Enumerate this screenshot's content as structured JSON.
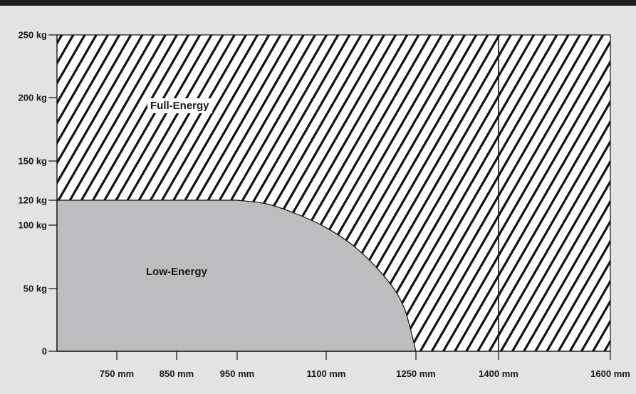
{
  "header": {
    "title": ""
  },
  "chart_data": {
    "type": "area",
    "title": "",
    "xlabel": "",
    "ylabel": "",
    "x_ticks": [
      {
        "value": 750,
        "label": "750 mm"
      },
      {
        "value": 850,
        "label": "850 mm"
      },
      {
        "value": 950,
        "label": "950 mm"
      },
      {
        "value": 1100,
        "label": "1100 mm"
      },
      {
        "value": 1250,
        "label": "1250 mm"
      },
      {
        "value": 1400,
        "label": "1400 mm"
      },
      {
        "value": 1600,
        "label": "1600 mm"
      }
    ],
    "y_ticks": [
      {
        "value": 0,
        "label": "0"
      },
      {
        "value": 50,
        "label": "50 kg"
      },
      {
        "value": 100,
        "label": "100 kg"
      },
      {
        "value": 120,
        "label": "120 kg"
      },
      {
        "value": 150,
        "label": "150 kg"
      },
      {
        "value": 200,
        "label": "200 kg"
      },
      {
        "value": 250,
        "label": "250 kg"
      }
    ],
    "xlim": [
      650,
      1600
    ],
    "ylim": [
      0,
      250
    ],
    "grid": false,
    "divider_x": 1400,
    "regions": [
      {
        "name": "Full-Energy",
        "label": "Full-Energy",
        "fill": "hatched",
        "color": "#111111",
        "bounds": {
          "x": [
            650,
            1600
          ],
          "y": [
            0,
            250
          ]
        }
      },
      {
        "name": "Low-Energy",
        "label": "Low-Energy",
        "fill": "solid",
        "color": "#bdbdbf",
        "boundary": [
          {
            "x": 650,
            "y": 120
          },
          {
            "x": 950,
            "y": 120
          },
          {
            "x": 1000,
            "y": 117
          },
          {
            "x": 1050,
            "y": 109
          },
          {
            "x": 1100,
            "y": 98
          },
          {
            "x": 1150,
            "y": 82
          },
          {
            "x": 1200,
            "y": 58
          },
          {
            "x": 1230,
            "y": 35
          },
          {
            "x": 1250,
            "y": 0
          }
        ]
      }
    ]
  }
}
